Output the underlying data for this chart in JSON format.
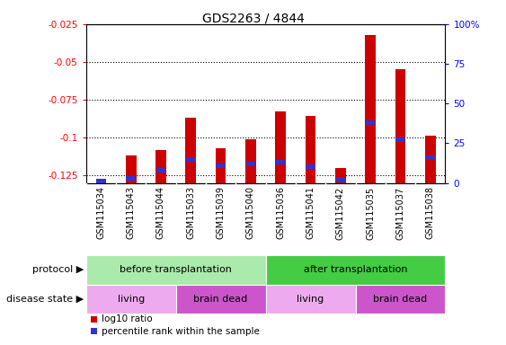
{
  "title": "GDS2263 / 4844",
  "samples": [
    "GSM115034",
    "GSM115043",
    "GSM115044",
    "GSM115033",
    "GSM115039",
    "GSM115040",
    "GSM115036",
    "GSM115041",
    "GSM115042",
    "GSM115035",
    "GSM115037",
    "GSM115038"
  ],
  "log10_ratio": [
    -0.128,
    -0.112,
    -0.108,
    -0.087,
    -0.107,
    -0.101,
    -0.083,
    -0.086,
    -0.12,
    -0.032,
    -0.055,
    -0.099
  ],
  "percentile_rank": [
    1,
    3,
    8,
    15,
    11,
    12,
    13,
    10,
    2,
    38,
    27,
    16
  ],
  "ylim_left": [
    -0.13,
    -0.025
  ],
  "ylim_right": [
    0,
    100
  ],
  "yticks_left": [
    -0.125,
    -0.1,
    -0.075,
    -0.05,
    -0.025
  ],
  "yticks_right": [
    0,
    25,
    50,
    75,
    100
  ],
  "bar_color": "#cc0000",
  "percentile_color": "#3333cc",
  "protocol_groups": [
    {
      "label": "before transplantation",
      "start": 0,
      "end": 6,
      "color": "#aaeaaa"
    },
    {
      "label": "after transplantation",
      "start": 6,
      "end": 12,
      "color": "#44cc44"
    }
  ],
  "disease_groups": [
    {
      "label": "living",
      "start": 0,
      "end": 3,
      "color": "#eeaaee"
    },
    {
      "label": "brain dead",
      "start": 3,
      "end": 6,
      "color": "#cc55cc"
    },
    {
      "label": "living",
      "start": 6,
      "end": 9,
      "color": "#eeaaee"
    },
    {
      "label": "brain dead",
      "start": 9,
      "end": 12,
      "color": "#cc55cc"
    }
  ],
  "legend_items": [
    {
      "label": "log10 ratio",
      "color": "#cc0000"
    },
    {
      "label": "percentile rank within the sample",
      "color": "#3333cc"
    }
  ],
  "protocol_label": "protocol",
  "disease_label": "disease state",
  "xtick_bg": "#cccccc",
  "background_color": "#ffffff"
}
